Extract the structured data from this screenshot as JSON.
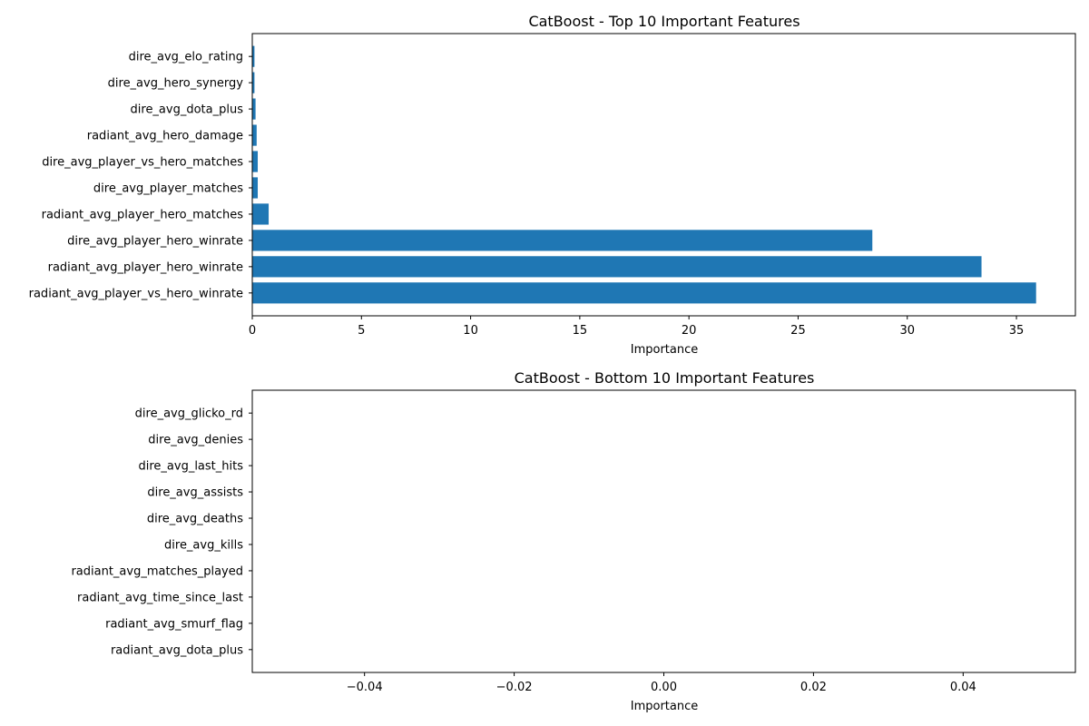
{
  "colors": {
    "bar": "#1f77b4",
    "axis": "#000000",
    "background": "#ffffff"
  },
  "chart_data": [
    {
      "type": "bar",
      "orientation": "horizontal",
      "title": "CatBoost - Top 10 Important Features",
      "xlabel": "Importance",
      "ylabel": "",
      "xlim": [
        0,
        37.7
      ],
      "xticks": [
        0,
        5,
        10,
        15,
        20,
        25,
        30,
        35
      ],
      "xtick_labels": [
        "0",
        "5",
        "10",
        "15",
        "20",
        "25",
        "30",
        "35"
      ],
      "categories": [
        "radiant_avg_player_vs_hero_winrate",
        "radiant_avg_player_hero_winrate",
        "dire_avg_player_hero_winrate",
        "radiant_avg_player_hero_matches",
        "dire_avg_player_matches",
        "dire_avg_player_vs_hero_matches",
        "radiant_avg_hero_damage",
        "dire_avg_dota_plus",
        "dire_avg_hero_synergy",
        "dire_avg_elo_rating"
      ],
      "values": [
        35.9,
        33.4,
        28.4,
        0.75,
        0.25,
        0.25,
        0.2,
        0.15,
        0.1,
        0.1
      ],
      "grid": false,
      "legend": "none"
    },
    {
      "type": "bar",
      "orientation": "horizontal",
      "title": "CatBoost - Bottom 10 Important Features",
      "xlabel": "Importance",
      "ylabel": "",
      "xlim": [
        -0.055,
        0.055
      ],
      "xticks": [
        -0.04,
        -0.02,
        0.0,
        0.02,
        0.04
      ],
      "xtick_labels": [
        "−0.04",
        "−0.02",
        "0.00",
        "0.02",
        "0.04"
      ],
      "categories": [
        "radiant_avg_dota_plus",
        "radiant_avg_smurf_flag",
        "radiant_avg_time_since_last",
        "radiant_avg_matches_played",
        "dire_avg_kills",
        "dire_avg_deaths",
        "dire_avg_assists",
        "dire_avg_last_hits",
        "dire_avg_denies",
        "dire_avg_glicko_rd"
      ],
      "values": [
        0,
        0,
        0,
        0,
        0,
        0,
        0,
        0,
        0,
        0
      ],
      "grid": false,
      "legend": "none"
    }
  ]
}
